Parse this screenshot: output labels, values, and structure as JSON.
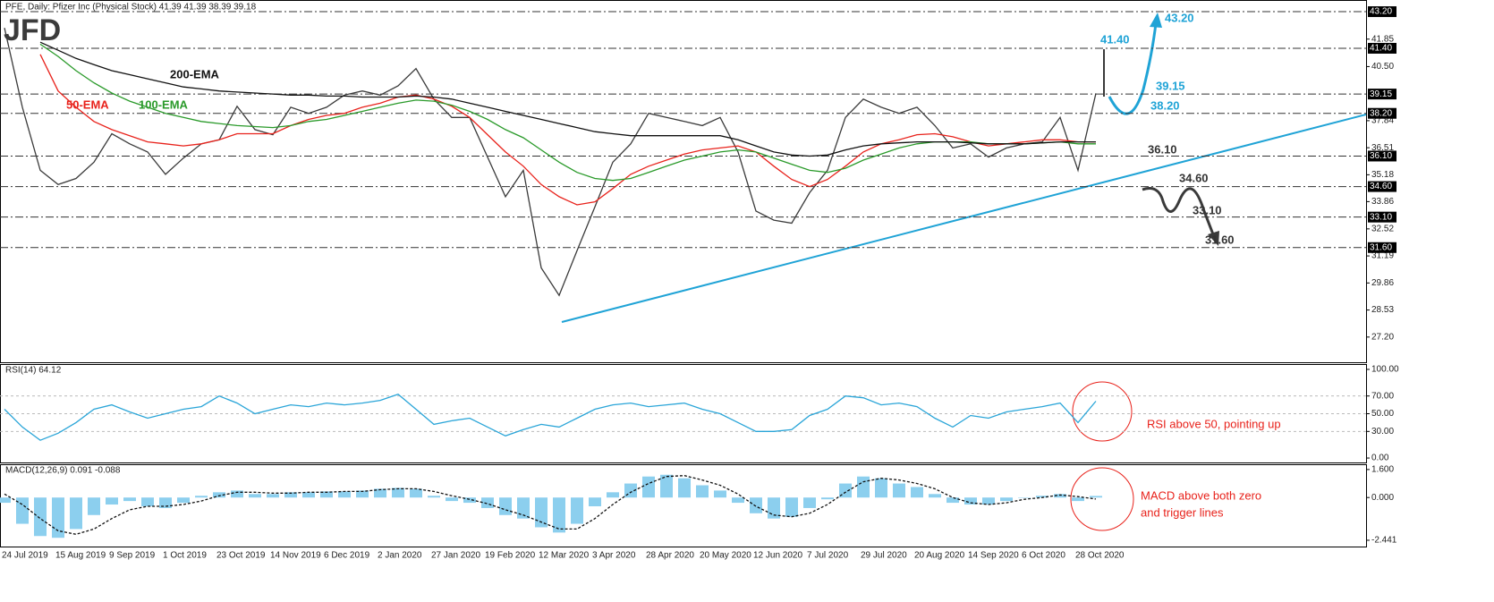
{
  "chart_data": [
    {
      "type": "line",
      "title": "PFE, Daily:  Pfizer Inc (Physical Stock)  41.39 41.39 38.39 39.18",
      "logo": "JFD",
      "ylim": [
        25.96,
        43.73
      ],
      "yticks": [
        41.85,
        {
          "value": 40.5,
          "label": "40.50"
        },
        37.84,
        36.51,
        35.18,
        33.86,
        32.52,
        31.19,
        29.86,
        28.53,
        {
          "value": 27.2,
          "label": "27.20"
        }
      ],
      "levels": [
        {
          "value": 43.2,
          "label": "43.20"
        },
        {
          "value": 41.4,
          "label": "41.40"
        },
        39.15,
        {
          "value": 38.2,
          "label": "38.20"
        },
        {
          "value": 36.1,
          "label": "36.10"
        },
        {
          "value": 34.6,
          "label": "34.60"
        },
        {
          "value": 33.1,
          "label": "33.10"
        },
        {
          "value": 31.6,
          "label": "31.60"
        }
      ],
      "annotations": [
        "41.40",
        "43.20",
        "39.15",
        "38.20",
        "36.10",
        "34.60",
        "33.10",
        "31.60"
      ],
      "series": [
        {
          "color": "#3a3a3a",
          "values": [
            42.4,
            38.5,
            35.4,
            34.7,
            35.0,
            35.8,
            37.2,
            36.7,
            36.3,
            35.2,
            36.0,
            36.7,
            36.9,
            38.55,
            37.4,
            37.15,
            38.5,
            38.2,
            38.5,
            39.1,
            39.3,
            39.1,
            39.55,
            40.4,
            38.9,
            38.0,
            38.0,
            36.05,
            34.1,
            35.4,
            30.6,
            29.25,
            31.45,
            33.6,
            35.8,
            36.7,
            38.2,
            38.0,
            37.8,
            37.6,
            38.0,
            36.3,
            33.4,
            32.95,
            32.8,
            34.3,
            35.4,
            38.0,
            38.9,
            38.5,
            38.2,
            38.5,
            37.6,
            36.5,
            36.7,
            36.05,
            36.5,
            36.7,
            36.8,
            38.0,
            35.4,
            39.18
          ]
        },
        {
          "name": "50-EMA",
          "color": "#e8221b",
          "values": [
            null,
            null,
            41.1,
            39.3,
            38.5,
            37.8,
            37.4,
            37.1,
            36.8,
            36.7,
            36.6,
            36.7,
            36.9,
            37.2,
            37.2,
            37.2,
            37.6,
            37.9,
            38.1,
            38.2,
            38.5,
            38.7,
            39.0,
            39.1,
            38.9,
            38.55,
            38.0,
            37.15,
            36.3,
            35.6,
            34.7,
            34.1,
            33.7,
            33.85,
            34.5,
            35.2,
            35.6,
            35.9,
            36.2,
            36.4,
            36.5,
            36.6,
            36.3,
            35.6,
            34.95,
            34.6,
            34.95,
            35.6,
            36.3,
            36.7,
            36.9,
            37.15,
            37.2,
            37.05,
            36.8,
            36.6,
            36.7,
            36.8,
            36.9,
            36.9,
            36.8,
            36.8
          ]
        },
        {
          "name": "100-EMA",
          "color": "#2a9a2a",
          "values": [
            null,
            null,
            41.6,
            41.0,
            40.3,
            39.7,
            39.2,
            38.8,
            38.5,
            38.2,
            38.0,
            37.8,
            37.7,
            37.6,
            37.55,
            37.5,
            37.6,
            37.8,
            37.9,
            38.1,
            38.3,
            38.5,
            38.7,
            38.85,
            38.8,
            38.6,
            38.3,
            37.9,
            37.4,
            37.0,
            36.4,
            35.8,
            35.3,
            35.0,
            34.9,
            35.0,
            35.3,
            35.6,
            35.9,
            36.1,
            36.3,
            36.4,
            36.3,
            36.0,
            35.7,
            35.4,
            35.3,
            35.5,
            35.9,
            36.2,
            36.5,
            36.7,
            36.8,
            36.8,
            36.8,
            36.7,
            36.7,
            36.7,
            36.75,
            36.8,
            36.7,
            36.7
          ]
        },
        {
          "name": "200-EMA",
          "color": "#111111",
          "values": [
            null,
            null,
            41.7,
            41.3,
            40.9,
            40.6,
            40.3,
            40.1,
            39.9,
            39.7,
            39.5,
            39.4,
            39.3,
            39.25,
            39.2,
            39.15,
            39.1,
            39.1,
            39.05,
            39.05,
            39.0,
            39.0,
            39.0,
            39.05,
            39.0,
            38.9,
            38.7,
            38.5,
            38.3,
            38.1,
            37.9,
            37.7,
            37.5,
            37.3,
            37.2,
            37.1,
            37.1,
            37.1,
            37.1,
            37.1,
            37.1,
            36.9,
            36.6,
            36.3,
            36.15,
            36.1,
            36.15,
            36.4,
            36.6,
            36.7,
            36.75,
            36.8,
            36.8,
            36.8,
            36.75,
            36.7,
            36.7,
            36.7,
            36.75,
            36.8,
            36.8,
            36.8
          ]
        }
      ]
    },
    {
      "type": "line",
      "title": "RSI(14) 64.12",
      "ylim": [
        -5,
        105
      ],
      "yticks": [
        {
          "value": 100,
          "label": "100.00"
        },
        {
          "value": 70,
          "label": "70.00"
        },
        {
          "value": 50,
          "label": "50.00"
        },
        {
          "value": 30,
          "label": "30.00"
        },
        {
          "value": 0,
          "label": "0.00"
        }
      ],
      "annotations": [
        "RSI above 50, pointing up"
      ],
      "series": [
        {
          "color": "#2aa5d8",
          "values": [
            55,
            35,
            20,
            28,
            40,
            55,
            60,
            52,
            45,
            50,
            55,
            58,
            70,
            62,
            50,
            55,
            60,
            58,
            62,
            60,
            62,
            65,
            72,
            55,
            38,
            42,
            45,
            35,
            25,
            32,
            38,
            35,
            45,
            55,
            60,
            62,
            58,
            60,
            62,
            55,
            50,
            40,
            30,
            30,
            32,
            48,
            55,
            70,
            68,
            60,
            62,
            58,
            45,
            35,
            48,
            45,
            52,
            55,
            58,
            62,
            40,
            64.12
          ]
        }
      ]
    },
    {
      "type": "bar",
      "title": "MACD(12,26,9) 0.091 -0.088",
      "ylim": [
        -2.8,
        1.85
      ],
      "yticks": [
        {
          "value": 1.6,
          "label": "1.600"
        },
        {
          "value": 0,
          "label": "0.000"
        },
        {
          "value": -2.441,
          "label": "-2.441"
        }
      ],
      "annotations": [
        "MACD above both zero",
        "and trigger lines"
      ],
      "categories": [
        "24 Jul 2019",
        null,
        null,
        "15 Aug 2019",
        null,
        null,
        "9 Sep 2019",
        null,
        null,
        "1 Oct 2019",
        null,
        null,
        "23 Oct 2019",
        null,
        null,
        "14 Nov 2019",
        null,
        null,
        "6 Dec 2019",
        null,
        null,
        "2 Jan 2020",
        null,
        null,
        "27 Jan 2020",
        null,
        null,
        "19 Feb 2020",
        null,
        null,
        "12 Mar 2020",
        null,
        null,
        "3 Apr 2020",
        null,
        null,
        "28 Apr 2020",
        null,
        null,
        "20 May 2020",
        null,
        null,
        "12 Jun 2020",
        null,
        null,
        "7 Jul 2020",
        null,
        null,
        "29 Jul 2020",
        null,
        null,
        "20 Aug 2020",
        null,
        null,
        "14 Sep 2020",
        null,
        null,
        "6 Oct 2020",
        null,
        null,
        "28 Oct 2020",
        null
      ],
      "series": [
        {
          "color": "#8ccfee",
          "values": [
            -0.3,
            -1.5,
            -2.2,
            -2.3,
            -1.8,
            -1.0,
            -0.4,
            -0.2,
            -0.5,
            -0.6,
            -0.3,
            0.1,
            0.3,
            0.4,
            0.2,
            0.2,
            0.3,
            0.3,
            0.35,
            0.35,
            0.4,
            0.5,
            0.55,
            0.5,
            0.1,
            -0.2,
            -0.3,
            -0.6,
            -1.0,
            -1.2,
            -1.7,
            -2.0,
            -1.5,
            -0.5,
            0.3,
            0.8,
            1.2,
            1.3,
            1.1,
            0.7,
            0.4,
            -0.3,
            -0.9,
            -1.2,
            -1.1,
            -0.6,
            -0.1,
            0.8,
            1.2,
            1.1,
            0.8,
            0.6,
            0.2,
            -0.3,
            -0.4,
            -0.4,
            -0.2,
            0.0,
            0.1,
            0.2,
            -0.2,
            0.091
          ]
        },
        {
          "color": "#111111",
          "values": [
            0.2,
            -0.4,
            -1.2,
            -1.9,
            -2.1,
            -1.8,
            -1.2,
            -0.7,
            -0.5,
            -0.5,
            -0.4,
            -0.2,
            0.1,
            0.3,
            0.3,
            0.25,
            0.25,
            0.3,
            0.3,
            0.35,
            0.35,
            0.45,
            0.5,
            0.5,
            0.35,
            0.1,
            -0.1,
            -0.35,
            -0.7,
            -1.0,
            -1.4,
            -1.8,
            -1.8,
            -1.2,
            -0.4,
            0.3,
            0.8,
            1.2,
            1.25,
            1.0,
            0.7,
            0.2,
            -0.5,
            -1.0,
            -1.1,
            -0.9,
            -0.4,
            0.3,
            0.9,
            1.1,
            1.0,
            0.8,
            0.5,
            0.0,
            -0.3,
            -0.4,
            -0.3,
            -0.1,
            0.0,
            0.15,
            0.05,
            -0.088
          ]
        }
      ]
    }
  ]
}
